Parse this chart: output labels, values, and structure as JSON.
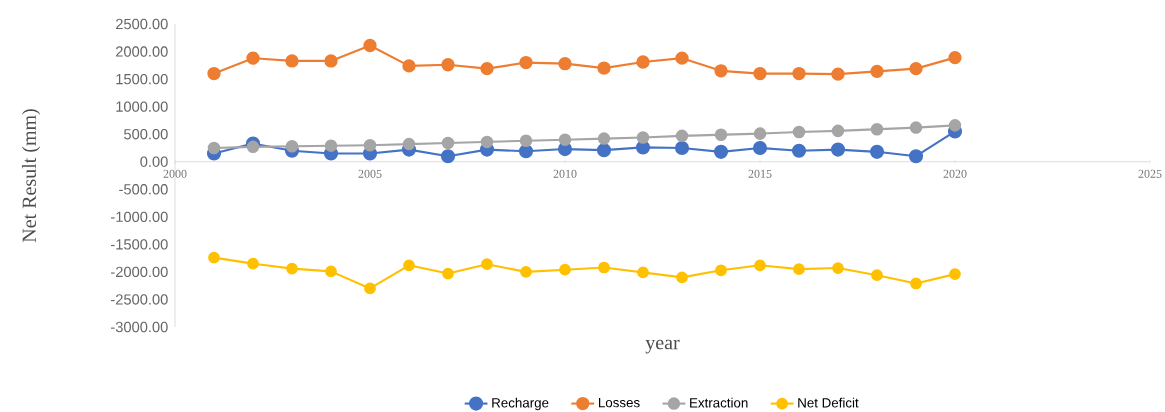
{
  "chart_data": {
    "type": "line",
    "xlabel": "year",
    "ylabel": "Net Result (mm)",
    "x": [
      2001,
      2002,
      2003,
      2004,
      2005,
      2006,
      2007,
      2008,
      2009,
      2010,
      2011,
      2012,
      2013,
      2014,
      2015,
      2016,
      2017,
      2018,
      2019,
      2020
    ],
    "series": [
      {
        "name": "Recharge",
        "color": "#4472c4",
        "values": [
          150,
          330,
          200,
          150,
          150,
          220,
          100,
          220,
          190,
          230,
          210,
          260,
          250,
          180,
          250,
          200,
          220,
          180,
          100,
          550
        ]
      },
      {
        "name": "Losses",
        "color": "#ed7d31",
        "values": [
          1600,
          1880,
          1830,
          1830,
          2110,
          1740,
          1760,
          1690,
          1800,
          1780,
          1700,
          1810,
          1880,
          1650,
          1600,
          1600,
          1590,
          1640,
          1690,
          1890
        ]
      },
      {
        "name": "Extraction",
        "color": "#a5a5a5",
        "values": [
          250,
          270,
          280,
          290,
          300,
          320,
          340,
          360,
          380,
          400,
          420,
          440,
          470,
          490,
          510,
          540,
          560,
          590,
          620,
          660
        ]
      },
      {
        "name": "Net Deficit",
        "color": "#ffc000",
        "values": [
          -1740,
          -1850,
          -1940,
          -1990,
          -2300,
          -1880,
          -2030,
          -1860,
          -2000,
          -1960,
          -1920,
          -2010,
          -2100,
          -1970,
          -1880,
          -1950,
          -1930,
          -2060,
          -2210,
          -2040
        ]
      }
    ],
    "xlim": [
      2000,
      2025
    ],
    "xticks": [
      2000,
      2005,
      2010,
      2015,
      2020,
      2025
    ],
    "ylim": [
      -3000,
      2500
    ],
    "yticks": [
      {
        "value": -3000,
        "label": "-3000.00"
      },
      {
        "value": -2500,
        "label": "-2500.00"
      },
      {
        "value": -2000,
        "label": "-2000.00"
      },
      {
        "value": -1500,
        "label": "-1500.00"
      },
      {
        "value": -1000,
        "label": "-1000.00"
      },
      {
        "value": -500,
        "label": "-500.00"
      },
      {
        "value": 0,
        "label": "0.00"
      },
      {
        "value": 500,
        "label": "500.00"
      },
      {
        "value": 1000,
        "label": "1000.00"
      },
      {
        "value": 1500,
        "label": "1500.00"
      },
      {
        "value": 2000,
        "label": "2000.00"
      },
      {
        "value": 2500,
        "label": "2500.00"
      }
    ],
    "grid": false,
    "legend": "bottom",
    "marker": "circle",
    "line_style": "solid"
  }
}
